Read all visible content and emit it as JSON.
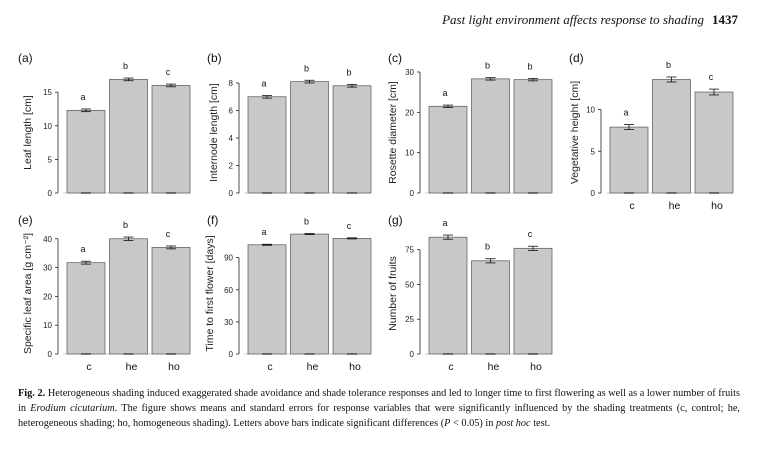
{
  "header": {
    "title": "Past light environment affects response to shading",
    "page": "1437"
  },
  "chart_data": [
    {
      "type": "bar",
      "panel": "(a)",
      "categories": [
        "c",
        "he",
        "ho"
      ],
      "values": [
        12.3,
        16.9,
        16.0
      ],
      "errors": [
        0.2,
        0.2,
        0.2
      ],
      "letters": [
        "a",
        "b",
        "c"
      ],
      "ylabel": "Leaf length [cm]",
      "yticks": [
        0,
        5,
        10,
        15
      ],
      "ylim": [
        0,
        18
      ],
      "show_xticklabels": false
    },
    {
      "type": "bar",
      "panel": "(b)",
      "categories": [
        "c",
        "he",
        "ho"
      ],
      "values": [
        7.0,
        8.1,
        7.8
      ],
      "errors": [
        0.1,
        0.1,
        0.1
      ],
      "letters": [
        "a",
        "b",
        "b"
      ],
      "ylabel": "Internode length [cm]",
      "yticks": [
        0,
        2,
        4,
        6,
        8
      ],
      "ylim": [
        0,
        8.8
      ],
      "show_xticklabels": false
    },
    {
      "type": "bar",
      "panel": "(c)",
      "categories": [
        "c",
        "he",
        "ho"
      ],
      "values": [
        21.5,
        28.3,
        28.1
      ],
      "errors": [
        0.3,
        0.3,
        0.3
      ],
      "letters": [
        "a",
        "b",
        "b"
      ],
      "ylabel": "Rosette diameter [cm]",
      "yticks": [
        0,
        10,
        20,
        30
      ],
      "ylim": [
        0,
        30
      ],
      "show_xticklabels": false
    },
    {
      "type": "bar",
      "panel": "(d)",
      "categories": [
        "c",
        "he",
        "ho"
      ],
      "values": [
        7.9,
        13.6,
        12.1
      ],
      "errors": [
        0.3,
        0.3,
        0.35
      ],
      "letters": [
        "a",
        "b",
        "c"
      ],
      "ylabel": "Vegetative height [cm]",
      "yticks": [
        0,
        5,
        10
      ],
      "ylim": [
        0,
        14.5
      ],
      "show_xticklabels": true
    },
    {
      "type": "bar",
      "panel": "(e)",
      "categories": [
        "c",
        "he",
        "ho"
      ],
      "values": [
        31.7,
        40.0,
        37.0
      ],
      "errors": [
        0.5,
        0.6,
        0.5
      ],
      "letters": [
        "a",
        "b",
        "c"
      ],
      "ylabel": "Specific leaf area [g cm⁻²]",
      "yticks": [
        0,
        10,
        20,
        30,
        40
      ],
      "ylim": [
        0,
        42
      ],
      "show_xticklabels": true
    },
    {
      "type": "bar",
      "panel": "(f)",
      "categories": [
        "c",
        "he",
        "ho"
      ],
      "values": [
        102,
        112,
        108
      ],
      "errors": [
        0.5,
        0.5,
        0.5
      ],
      "letters": [
        "a",
        "b",
        "c"
      ],
      "ylabel": "Time to first flower [days]",
      "yticks": [
        0,
        30,
        60,
        90
      ],
      "ylim": [
        0,
        113
      ],
      "show_xticklabels": true
    },
    {
      "type": "bar",
      "panel": "(g)",
      "categories": [
        "c",
        "he",
        "ho"
      ],
      "values": [
        84,
        67,
        76
      ],
      "errors": [
        1.5,
        1.5,
        1.5
      ],
      "letters": [
        "a",
        "b",
        "c"
      ],
      "ylabel": "Number of fruits",
      "yticks": [
        0,
        25,
        50,
        75
      ],
      "ylim": [
        0,
        87
      ],
      "show_xticklabels": true
    }
  ],
  "caption": {
    "label": "Fig. 2.",
    "part1": "Heterogeneous shading induced exaggerated shade avoidance and shade tolerance responses and led to longer time to first flowering as well as a lower number of fruits in",
    "species": "Erodium cicutarium",
    "part2": ". The figure shows means and standard errors for response variables that were significantly influenced by the shading treatments (c, control; he, heterogeneous shading; ho, homogeneous shading). Letters above bars indicate significant differences (",
    "pvar": "P",
    "part3": " < 0.05) in",
    "test": "post hoc",
    "part4": " test."
  }
}
